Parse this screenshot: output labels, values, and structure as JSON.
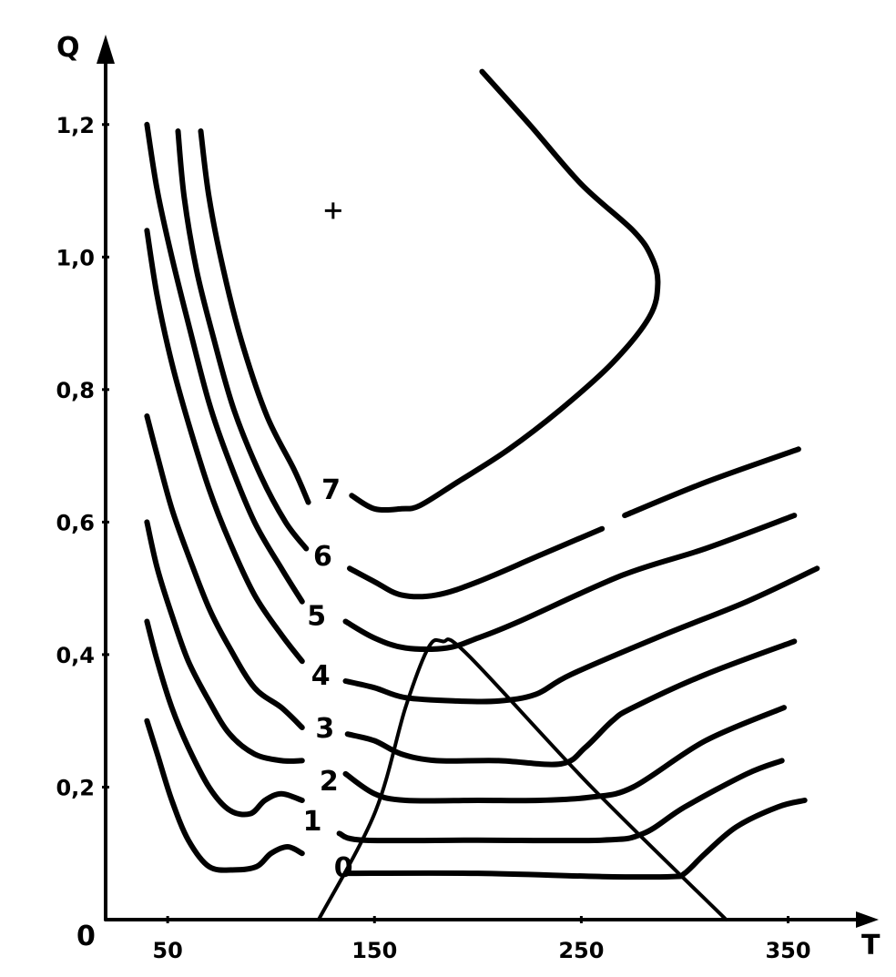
{
  "chart_data": {
    "type": "line",
    "xlabel": "T",
    "ylabel": "Q",
    "origin_label": "0",
    "xlim": [
      20,
      385
    ],
    "ylim": [
      0,
      1.3
    ],
    "x_ticks": [
      {
        "value": 50,
        "label": "50"
      },
      {
        "value": 150,
        "label": "150"
      },
      {
        "value": 250,
        "label": "250"
      },
      {
        "value": 350,
        "label": "350"
      }
    ],
    "y_ticks": [
      {
        "value": 0.2,
        "label": "0,2"
      },
      {
        "value": 0.4,
        "label": "0,4"
      },
      {
        "value": 0.6,
        "label": "0,6"
      },
      {
        "value": 0.8,
        "label": "0,8"
      },
      {
        "value": 1.0,
        "label": "1,0"
      },
      {
        "value": 1.2,
        "label": "1,2"
      }
    ],
    "grid": false,
    "series": [
      {
        "name": "0",
        "label_at": [
          135,
          0.08
        ],
        "segments": [
          [
            [
              40,
              0.3
            ],
            [
              45,
              0.25
            ],
            [
              52,
              0.18
            ],
            [
              60,
              0.12
            ],
            [
              70,
              0.08
            ],
            [
              82,
              0.075
            ],
            [
              93,
              0.08
            ],
            [
              100,
              0.1
            ],
            [
              108,
              0.11
            ],
            [
              115,
              0.1
            ]
          ],
          [
            [
              136,
              0.07
            ],
            [
              200,
              0.07
            ],
            [
              260,
              0.065
            ],
            [
              294,
              0.065
            ],
            [
              300,
              0.07
            ],
            [
              310,
              0.1
            ],
            [
              325,
              0.14
            ],
            [
              345,
              0.17
            ],
            [
              358,
              0.18
            ]
          ]
        ]
      },
      {
        "name": "1",
        "label_at": [
          120,
          0.15
        ],
        "segments": [
          [
            [
              40,
              0.45
            ],
            [
              45,
              0.39
            ],
            [
              52,
              0.32
            ],
            [
              60,
              0.26
            ],
            [
              70,
              0.2
            ],
            [
              80,
              0.165
            ],
            [
              90,
              0.16
            ],
            [
              97,
              0.18
            ],
            [
              105,
              0.19
            ],
            [
              115,
              0.18
            ]
          ],
          [
            [
              133,
              0.13
            ],
            [
              145,
              0.12
            ],
            [
              200,
              0.12
            ],
            [
              260,
              0.12
            ],
            [
              280,
              0.13
            ],
            [
              300,
              0.17
            ],
            [
              330,
              0.22
            ],
            [
              347,
              0.24
            ]
          ]
        ]
      },
      {
        "name": "2",
        "label_at": [
          128,
          0.21
        ],
        "segments": [
          [
            [
              40,
              0.6
            ],
            [
              45,
              0.53
            ],
            [
              52,
              0.46
            ],
            [
              60,
              0.39
            ],
            [
              70,
              0.33
            ],
            [
              80,
              0.28
            ],
            [
              92,
              0.25
            ],
            [
              105,
              0.24
            ],
            [
              115,
              0.24
            ]
          ],
          [
            [
              136,
              0.22
            ],
            [
              150,
              0.19
            ],
            [
              165,
              0.18
            ],
            [
              200,
              0.18
            ],
            [
              230,
              0.18
            ],
            [
              255,
              0.185
            ],
            [
              275,
              0.2
            ],
            [
              310,
              0.27
            ],
            [
              348,
              0.32
            ]
          ]
        ]
      },
      {
        "name": "3",
        "label_at": [
          126,
          0.29
        ],
        "segments": [
          [
            [
              40,
              0.76
            ],
            [
              45,
              0.7
            ],
            [
              52,
              0.62
            ],
            [
              60,
              0.55
            ],
            [
              70,
              0.47
            ],
            [
              80,
              0.41
            ],
            [
              92,
              0.35
            ],
            [
              105,
              0.32
            ],
            [
              115,
              0.29
            ]
          ],
          [
            [
              137,
              0.28
            ],
            [
              150,
              0.27
            ],
            [
              163,
              0.25
            ],
            [
              180,
              0.24
            ],
            [
              210,
              0.24
            ],
            [
              240,
              0.235
            ],
            [
              252,
              0.26
            ],
            [
              265,
              0.3
            ],
            [
              275,
              0.32
            ],
            [
              310,
              0.37
            ],
            [
              353,
              0.42
            ]
          ]
        ]
      },
      {
        "name": "4",
        "label_at": [
          124,
          0.37
        ],
        "segments": [
          [
            [
              40,
              1.04
            ],
            [
              45,
              0.94
            ],
            [
              52,
              0.84
            ],
            [
              60,
              0.75
            ],
            [
              70,
              0.65
            ],
            [
              80,
              0.57
            ],
            [
              92,
              0.49
            ],
            [
              105,
              0.43
            ],
            [
              115,
              0.39
            ]
          ],
          [
            [
              136,
              0.36
            ],
            [
              150,
              0.35
            ],
            [
              165,
              0.335
            ],
            [
              190,
              0.33
            ],
            [
              210,
              0.33
            ],
            [
              228,
              0.34
            ],
            [
              245,
              0.37
            ],
            [
              290,
              0.43
            ],
            [
              330,
              0.48
            ],
            [
              364,
              0.53
            ]
          ]
        ]
      },
      {
        "name": "5",
        "label_at": [
          122,
          0.46
        ],
        "segments": [
          [
            [
              40,
              1.2
            ],
            [
              45,
              1.1
            ],
            [
              52,
              1.0
            ],
            [
              60,
              0.9
            ],
            [
              70,
              0.78
            ],
            [
              80,
              0.69
            ],
            [
              92,
              0.6
            ],
            [
              105,
              0.53
            ],
            [
              115,
              0.48
            ]
          ],
          [
            [
              136,
              0.45
            ],
            [
              150,
              0.425
            ],
            [
              165,
              0.41
            ],
            [
              185,
              0.41
            ],
            [
              200,
              0.425
            ],
            [
              220,
              0.45
            ],
            [
              270,
              0.52
            ],
            [
              310,
              0.56
            ],
            [
              353,
              0.61
            ]
          ]
        ]
      },
      {
        "name": "6",
        "label_at": [
          125,
          0.55
        ],
        "segments": [
          [
            [
              55,
              1.19
            ],
            [
              58,
              1.09
            ],
            [
              64,
              0.98
            ],
            [
              72,
              0.88
            ],
            [
              82,
              0.77
            ],
            [
              95,
              0.67
            ],
            [
              107,
              0.6
            ],
            [
              117,
              0.56
            ]
          ],
          [
            [
              138,
              0.53
            ],
            [
              150,
              0.51
            ],
            [
              163,
              0.49
            ],
            [
              180,
              0.49
            ],
            [
              200,
              0.51
            ],
            [
              230,
              0.55
            ],
            [
              260,
              0.59
            ]
          ],
          [
            [
              271,
              0.61
            ],
            [
              310,
              0.66
            ],
            [
              355,
              0.71
            ]
          ]
        ]
      },
      {
        "name": "7",
        "label_at": [
          129,
          0.65
        ],
        "segments": [
          [
            [
              66,
              1.19
            ],
            [
              70,
              1.09
            ],
            [
              77,
              0.98
            ],
            [
              86,
              0.87
            ],
            [
              98,
              0.76
            ],
            [
              111,
              0.68
            ],
            [
              118,
              0.63
            ]
          ],
          [
            [
              139,
              0.64
            ],
            [
              150,
              0.62
            ],
            [
              163,
              0.62
            ],
            [
              172,
              0.625
            ],
            [
              190,
              0.66
            ],
            [
              215,
              0.71
            ],
            [
              240,
              0.77
            ],
            [
              265,
              0.84
            ],
            [
              283,
              0.91
            ],
            [
              287,
              0.96
            ],
            [
              284,
              1.0
            ],
            [
              275,
              1.04
            ],
            [
              250,
              1.11
            ],
            [
              225,
              1.2
            ],
            [
              202,
              1.28
            ]
          ]
        ]
      }
    ],
    "triangle": [
      [
        123,
        0.0
      ],
      [
        150,
        0.16
      ],
      [
        165,
        0.32
      ],
      [
        176,
        0.41
      ],
      [
        183,
        0.42
      ],
      [
        195,
        0.4
      ],
      [
        255,
        0.2
      ],
      [
        320,
        0.0
      ]
    ],
    "marker": [
      130,
      1.07
    ]
  }
}
